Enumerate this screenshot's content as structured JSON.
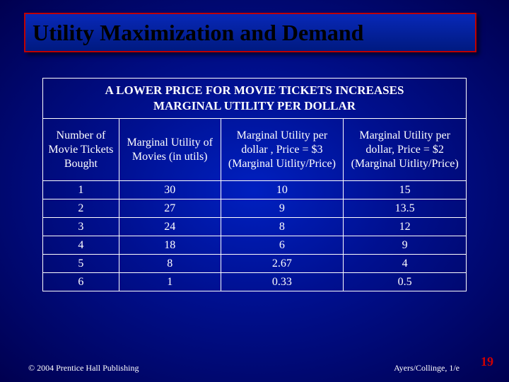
{
  "title": "Utility Maximization and Demand",
  "table": {
    "caption_line1": "A LOWER PRICE FOR MOVIE TICKETS INCREASES",
    "caption_line2": "MARGINAL UTILITY PER DOLLAR",
    "columns": [
      "Number of Movie Tickets Bought",
      "Marginal Utility of Movies (in utils)",
      "Marginal Utility per dollar , Price = $3 (Marginal Uitlity/Price)",
      "Marginal Utility per dollar, Price = $2 (Marginal Uitlity/Price)"
    ],
    "rows": [
      [
        "1",
        "30",
        "10",
        "15"
      ],
      [
        "2",
        "27",
        "9",
        "13.5"
      ],
      [
        "3",
        "24",
        "8",
        "12"
      ],
      [
        "4",
        "18",
        "6",
        "9"
      ],
      [
        "5",
        "8",
        "2.67",
        "4"
      ],
      [
        "6",
        "1",
        "0.33",
        "0.5"
      ]
    ],
    "col_widths": [
      "18%",
      "24%",
      "29%",
      "29%"
    ]
  },
  "footer": {
    "left": "© 2004 Prentice Hall Publishing",
    "right": "Ayers/Collinge, 1/e",
    "page": "19"
  },
  "colors": {
    "border_red": "#c00000",
    "text_white": "#ffffff",
    "page_red": "#d00000"
  }
}
